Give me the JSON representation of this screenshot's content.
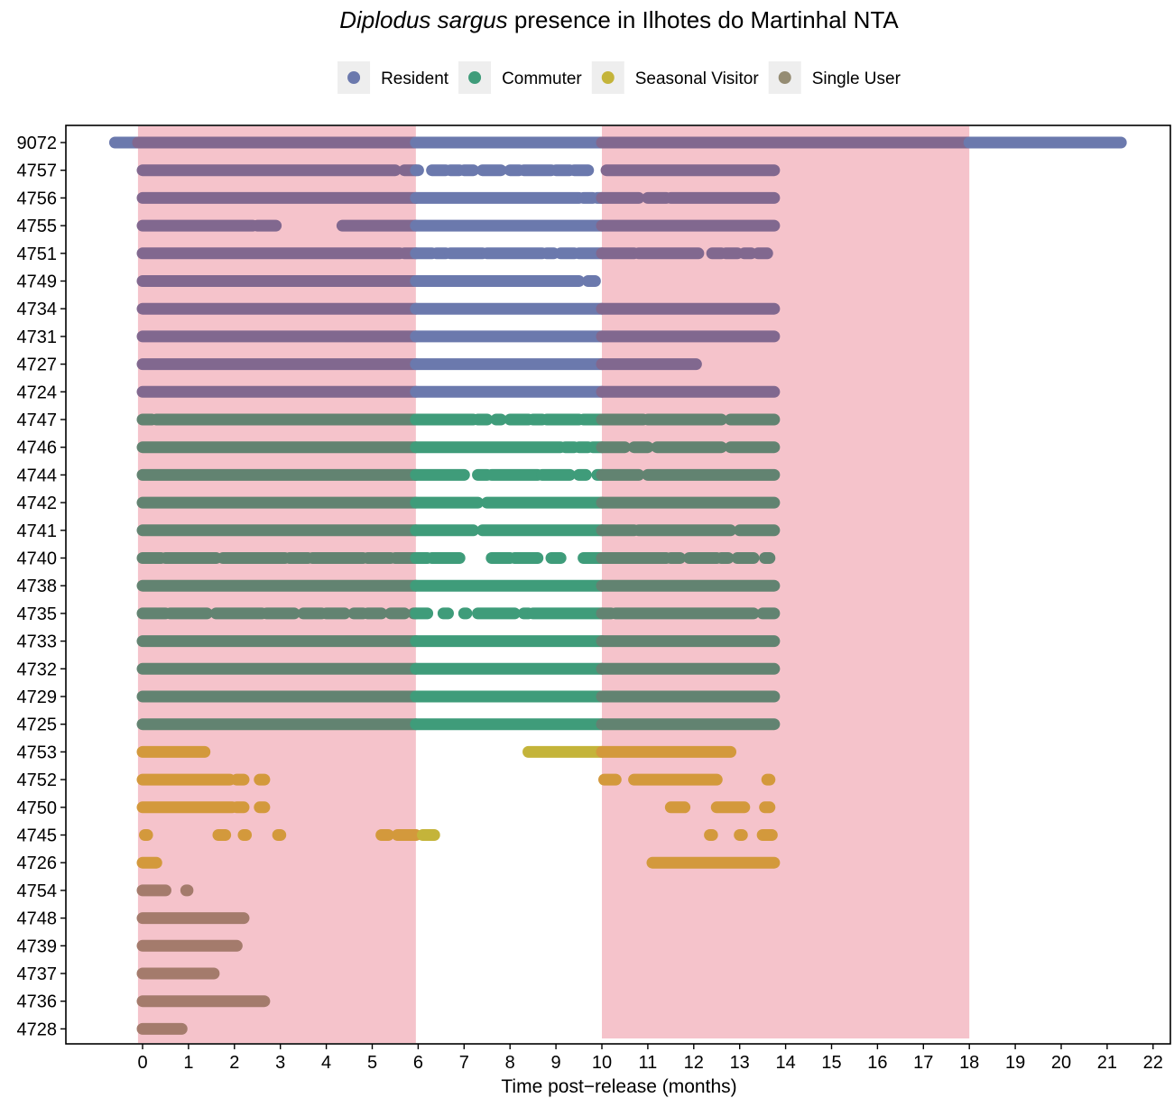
{
  "chart_data": {
    "type": "timeline",
    "title_italic": "Diplodus sargus",
    "title_rest": " presence in Ilhotes do Martinhal NTA",
    "xlabel": "Time post−release (months)",
    "ylabel": "",
    "xlim": [
      -0.7,
      22.4
    ],
    "x_ticks": [
      0,
      1,
      2,
      3,
      4,
      5,
      6,
      7,
      8,
      9,
      10,
      11,
      12,
      13,
      14,
      15,
      16,
      17,
      18,
      19,
      20,
      21,
      22
    ],
    "grid": false,
    "legend_position": "top",
    "legend": [
      {
        "name": "Resident",
        "color": "#6b79ad"
      },
      {
        "name": "Commuter",
        "color": "#3f9c7a"
      },
      {
        "name": "Seasonal Visitor",
        "color": "#c4b43a"
      },
      {
        "name": "Single User",
        "color": "#958c73"
      }
    ],
    "shaded_periods": [
      {
        "start": -0.1,
        "end": 5.95,
        "color": "#f5c3cb"
      },
      {
        "start": 10.0,
        "end": 18.0,
        "color": "#f5c3cb"
      }
    ],
    "overlay_colors": {
      "Resident": "#81688f",
      "Commuter": "#628371",
      "Seasonal Visitor": "#d3993c",
      "Single User": "#a47b6c"
    },
    "fish": [
      {
        "id": "9072",
        "group": "Resident",
        "segments": [
          [
            -0.6,
            21.3
          ]
        ]
      },
      {
        "id": "4757",
        "group": "Resident",
        "segments": [
          [
            0,
            5.5
          ],
          [
            5.7,
            6.0
          ],
          [
            6.3,
            6.6
          ],
          [
            6.7,
            6.9
          ],
          [
            7.0,
            7.2
          ],
          [
            7.4,
            7.8
          ],
          [
            8.0,
            8.2
          ],
          [
            8.3,
            8.9
          ],
          [
            9.0,
            9.3
          ],
          [
            9.4,
            9.7
          ],
          [
            10.1,
            13.75
          ]
        ]
      },
      {
        "id": "4756",
        "group": "Resident",
        "segments": [
          [
            0,
            9.5
          ],
          [
            9.6,
            9.8
          ],
          [
            9.9,
            10.8
          ],
          [
            11.0,
            11.4
          ],
          [
            11.5,
            13.75
          ]
        ]
      },
      {
        "id": "4755",
        "group": "Resident",
        "segments": [
          [
            0,
            2.4
          ],
          [
            2.5,
            2.9
          ],
          [
            4.35,
            13.75
          ]
        ]
      },
      {
        "id": "4751",
        "group": "Resident",
        "segments": [
          [
            0,
            5.6
          ],
          [
            5.7,
            6.3
          ],
          [
            6.4,
            6.6
          ],
          [
            6.7,
            7.4
          ],
          [
            7.5,
            8.7
          ],
          [
            8.8,
            8.95
          ],
          [
            9.1,
            9.4
          ],
          [
            9.5,
            10.7
          ],
          [
            10.8,
            12.1
          ],
          [
            12.4,
            12.6
          ],
          [
            12.7,
            12.95
          ],
          [
            13.1,
            13.25
          ],
          [
            13.4,
            13.6
          ]
        ]
      },
      {
        "id": "4749",
        "group": "Resident",
        "segments": [
          [
            0,
            9.5
          ],
          [
            9.7,
            9.85
          ]
        ]
      },
      {
        "id": "4734",
        "group": "Resident",
        "segments": [
          [
            0,
            13.75
          ]
        ]
      },
      {
        "id": "4731",
        "group": "Resident",
        "segments": [
          [
            0,
            13.75
          ]
        ]
      },
      {
        "id": "4727",
        "group": "Resident",
        "segments": [
          [
            0,
            12.05
          ]
        ]
      },
      {
        "id": "4724",
        "group": "Resident",
        "segments": [
          [
            0,
            13.75
          ]
        ]
      },
      {
        "id": "4747",
        "group": "Commuter",
        "segments": [
          [
            0,
            0.2
          ],
          [
            0.3,
            7.2
          ],
          [
            7.3,
            7.5
          ],
          [
            7.7,
            7.8
          ],
          [
            8.0,
            8.4
          ],
          [
            8.5,
            8.7
          ],
          [
            8.8,
            9.5
          ],
          [
            9.6,
            10.9
          ],
          [
            11.0,
            12.6
          ],
          [
            12.8,
            13.75
          ]
        ]
      },
      {
        "id": "4746",
        "group": "Commuter",
        "segments": [
          [
            0,
            9.1
          ],
          [
            9.2,
            9.4
          ],
          [
            9.5,
            9.7
          ],
          [
            9.8,
            10.5
          ],
          [
            10.7,
            11.0
          ],
          [
            11.2,
            12.6
          ],
          [
            12.8,
            13.75
          ]
        ]
      },
      {
        "id": "4744",
        "group": "Commuter",
        "segments": [
          [
            0,
            7.0
          ],
          [
            7.3,
            7.5
          ],
          [
            7.6,
            8.6
          ],
          [
            8.7,
            9.3
          ],
          [
            9.5,
            9.65
          ],
          [
            9.9,
            10.8
          ],
          [
            11.0,
            13.75
          ]
        ]
      },
      {
        "id": "4742",
        "group": "Commuter",
        "segments": [
          [
            0,
            7.3
          ],
          [
            7.5,
            13.75
          ]
        ]
      },
      {
        "id": "4741",
        "group": "Commuter",
        "segments": [
          [
            0,
            7.2
          ],
          [
            7.4,
            10.7
          ],
          [
            10.8,
            12.8
          ],
          [
            13.0,
            13.75
          ]
        ]
      },
      {
        "id": "4740",
        "group": "Commuter",
        "segments": [
          [
            0,
            0.4
          ],
          [
            0.5,
            1.6
          ],
          [
            1.75,
            3.1
          ],
          [
            3.2,
            3.6
          ],
          [
            3.7,
            4.8
          ],
          [
            4.9,
            5.4
          ],
          [
            5.5,
            6.2
          ],
          [
            6.3,
            6.9
          ],
          [
            7.6,
            8.0
          ],
          [
            8.1,
            8.6
          ],
          [
            8.9,
            9.1
          ],
          [
            9.6,
            11.4
          ],
          [
            11.5,
            11.7
          ],
          [
            11.9,
            12.5
          ],
          [
            12.6,
            12.75
          ],
          [
            12.95,
            13.3
          ],
          [
            13.55,
            13.65
          ]
        ]
      },
      {
        "id": "4738",
        "group": "Commuter",
        "segments": [
          [
            0,
            13.75
          ]
        ]
      },
      {
        "id": "4735",
        "group": "Commuter",
        "segments": [
          [
            0,
            0.5
          ],
          [
            0.6,
            1.4
          ],
          [
            1.6,
            2.6
          ],
          [
            2.7,
            3.3
          ],
          [
            3.5,
            3.9
          ],
          [
            4.0,
            4.4
          ],
          [
            4.6,
            4.8
          ],
          [
            4.9,
            5.2
          ],
          [
            5.4,
            5.7
          ],
          [
            5.9,
            6.2
          ],
          [
            6.55,
            6.65
          ],
          [
            7.0,
            7.05
          ],
          [
            7.3,
            8.1
          ],
          [
            8.3,
            8.4
          ],
          [
            8.5,
            10.2
          ],
          [
            10.3,
            13.3
          ],
          [
            13.5,
            13.75
          ]
        ]
      },
      {
        "id": "4733",
        "group": "Commuter",
        "segments": [
          [
            0,
            13.75
          ]
        ]
      },
      {
        "id": "4732",
        "group": "Commuter",
        "segments": [
          [
            0,
            13.75
          ]
        ]
      },
      {
        "id": "4729",
        "group": "Commuter",
        "segments": [
          [
            0,
            13.75
          ]
        ]
      },
      {
        "id": "4725",
        "group": "Commuter",
        "segments": [
          [
            0,
            13.75
          ]
        ]
      },
      {
        "id": "4753",
        "group": "Seasonal Visitor",
        "segments": [
          [
            0,
            1.35
          ],
          [
            8.4,
            12.8
          ]
        ]
      },
      {
        "id": "4752",
        "group": "Seasonal Visitor",
        "segments": [
          [
            0,
            1.9
          ],
          [
            2.05,
            2.2
          ],
          [
            2.55,
            2.65
          ],
          [
            10.05,
            10.3
          ],
          [
            10.7,
            12.5
          ],
          [
            13.6,
            13.65
          ]
        ]
      },
      {
        "id": "4750",
        "group": "Seasonal Visitor",
        "segments": [
          [
            0,
            1.95
          ],
          [
            2.05,
            2.2
          ],
          [
            2.55,
            2.65
          ],
          [
            11.5,
            11.8
          ],
          [
            12.5,
            13.1
          ],
          [
            13.55,
            13.65
          ]
        ]
      },
      {
        "id": "4745",
        "group": "Seasonal Visitor",
        "segments": [
          [
            0.05,
            0.1
          ],
          [
            1.65,
            1.8
          ],
          [
            2.2,
            2.25
          ],
          [
            2.95,
            3.0
          ],
          [
            5.2,
            5.35
          ],
          [
            5.55,
            5.95
          ],
          [
            6.1,
            6.35
          ],
          [
            12.35,
            12.4
          ],
          [
            13.0,
            13.05
          ],
          [
            13.5,
            13.7
          ]
        ]
      },
      {
        "id": "4726",
        "group": "Seasonal Visitor",
        "segments": [
          [
            0,
            0.3
          ],
          [
            11.1,
            13.75
          ]
        ]
      },
      {
        "id": "4754",
        "group": "Single User",
        "segments": [
          [
            0,
            0.5
          ],
          [
            0.95,
            0.98
          ]
        ]
      },
      {
        "id": "4748",
        "group": "Single User",
        "segments": [
          [
            0,
            2.2
          ]
        ]
      },
      {
        "id": "4739",
        "group": "Single User",
        "segments": [
          [
            0,
            2.05
          ]
        ]
      },
      {
        "id": "4737",
        "group": "Single User",
        "segments": [
          [
            0,
            1.55
          ]
        ]
      },
      {
        "id": "4736",
        "group": "Single User",
        "segments": [
          [
            0,
            2.65
          ]
        ]
      },
      {
        "id": "4728",
        "group": "Single User",
        "segments": [
          [
            0,
            0.85
          ]
        ]
      }
    ]
  }
}
